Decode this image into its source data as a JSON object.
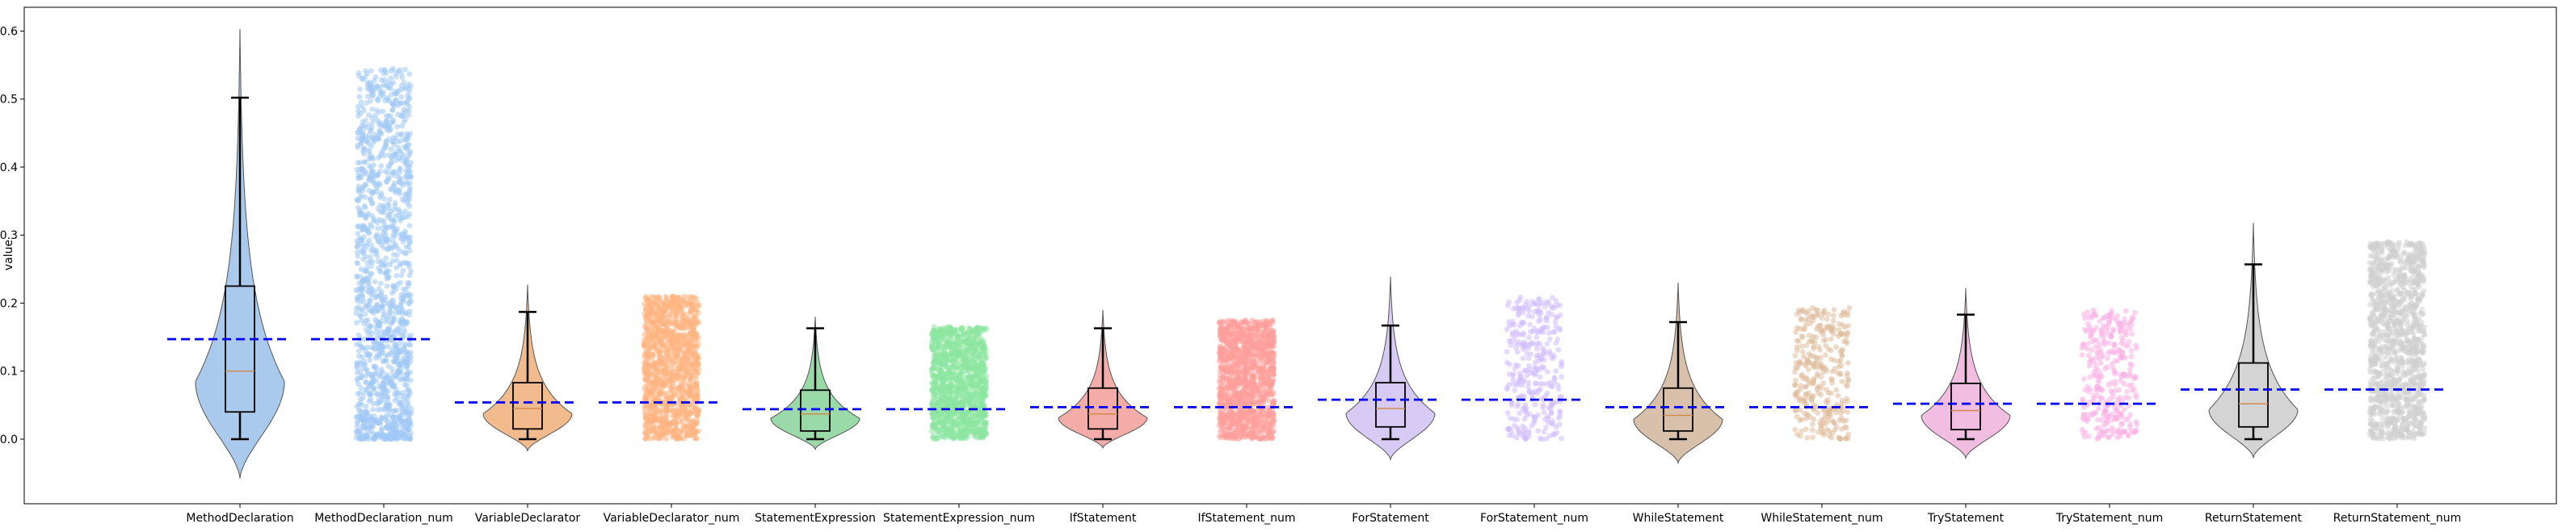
{
  "chart_data": {
    "type": "violin",
    "ylabel": "value",
    "ylim": [
      -0.095,
      0.635
    ],
    "yticks": [
      "0.0",
      "0.1",
      "0.2",
      "0.3",
      "0.4",
      "0.5",
      "0.6"
    ],
    "categories": [
      "MethodDeclaration",
      "MethodDeclaration_num",
      "VariableDeclarator",
      "VariableDeclarator_num",
      "StatementExpression",
      "StatementExpression_num",
      "IfStatement",
      "IfStatement_num",
      "ForStatement",
      "ForStatement_num",
      "WhileStatement",
      "WhileStatement_num",
      "TryStatement",
      "TryStatement_num",
      "ReturnStatement",
      "ReturnStatement_num"
    ],
    "series": [
      {
        "category": "MethodDeclaration",
        "kind": "violin",
        "color": "#a1c4eb",
        "min": 0.0,
        "q1": 0.04,
        "median": 0.1,
        "q3": 0.225,
        "max": 0.502,
        "violin_min": -0.058,
        "violin_max": 0.603,
        "mean": 0.147
      },
      {
        "category": "MethodDeclaration_num",
        "kind": "strip",
        "color": "#a1c9f4",
        "min": 0.0,
        "max": 0.545,
        "mean": 0.147
      },
      {
        "category": "VariableDeclarator",
        "kind": "violin",
        "color": "#f0b482",
        "min": 0.0,
        "q1": 0.015,
        "median": 0.045,
        "q3": 0.083,
        "max": 0.187,
        "violin_min": -0.017,
        "violin_max": 0.227,
        "mean": 0.054
      },
      {
        "category": "VariableDeclarator_num",
        "kind": "strip",
        "color": "#ffb482",
        "min": 0.0,
        "max": 0.21,
        "mean": 0.054
      },
      {
        "category": "StatementExpression",
        "kind": "violin",
        "color": "#8fd6a0",
        "min": 0.0,
        "q1": 0.012,
        "median": 0.037,
        "q3": 0.072,
        "max": 0.163,
        "violin_min": -0.015,
        "violin_max": 0.18,
        "mean": 0.044
      },
      {
        "category": "StatementExpression_num",
        "kind": "strip",
        "color": "#8de5a1",
        "min": 0.0,
        "max": 0.165,
        "mean": 0.044
      },
      {
        "category": "IfStatement",
        "kind": "violin",
        "color": "#f3a3a0",
        "min": 0.0,
        "q1": 0.015,
        "median": 0.037,
        "q3": 0.075,
        "max": 0.163,
        "violin_min": -0.013,
        "violin_max": 0.19,
        "mean": 0.047
      },
      {
        "category": "IfStatement_num",
        "kind": "strip",
        "color": "#ff9f9b",
        "min": 0.0,
        "max": 0.175,
        "mean": 0.047
      },
      {
        "category": "ForStatement",
        "kind": "violin",
        "color": "#d3c4f3",
        "min": 0.0,
        "q1": 0.018,
        "median": 0.045,
        "q3": 0.083,
        "max": 0.167,
        "violin_min": -0.03,
        "violin_max": 0.239,
        "mean": 0.058
      },
      {
        "category": "ForStatement_num",
        "kind": "strip",
        "color": "#d0bbff",
        "min": 0.0,
        "max": 0.21,
        "mean": 0.058
      },
      {
        "category": "WhileStatement",
        "kind": "violin",
        "color": "#d4b9a2",
        "min": 0.0,
        "q1": 0.012,
        "median": 0.035,
        "q3": 0.075,
        "max": 0.172,
        "violin_min": -0.035,
        "violin_max": 0.23,
        "mean": 0.047
      },
      {
        "category": "WhileStatement_num",
        "kind": "strip",
        "color": "#debb9b",
        "min": 0.0,
        "max": 0.195,
        "mean": 0.047
      },
      {
        "category": "TryStatement",
        "kind": "violin",
        "color": "#f0b6dd",
        "min": 0.0,
        "q1": 0.014,
        "median": 0.042,
        "q3": 0.082,
        "max": 0.183,
        "violin_min": -0.028,
        "violin_max": 0.222,
        "mean": 0.052
      },
      {
        "category": "TryStatement_num",
        "kind": "strip",
        "color": "#fab0e4",
        "min": 0.0,
        "max": 0.19,
        "mean": 0.052
      },
      {
        "category": "ReturnStatement",
        "kind": "violin",
        "color": "#cfcfcf",
        "min": 0.0,
        "q1": 0.018,
        "median": 0.052,
        "q3": 0.112,
        "max": 0.257,
        "violin_min": -0.027,
        "violin_max": 0.318,
        "mean": 0.073
      },
      {
        "category": "ReturnStatement_num",
        "kind": "strip",
        "color": "#cfcfcf",
        "min": 0.0,
        "max": 0.29,
        "mean": 0.073
      }
    ],
    "mean_line_color": "#0000ff",
    "grid": false,
    "legend": "none"
  }
}
